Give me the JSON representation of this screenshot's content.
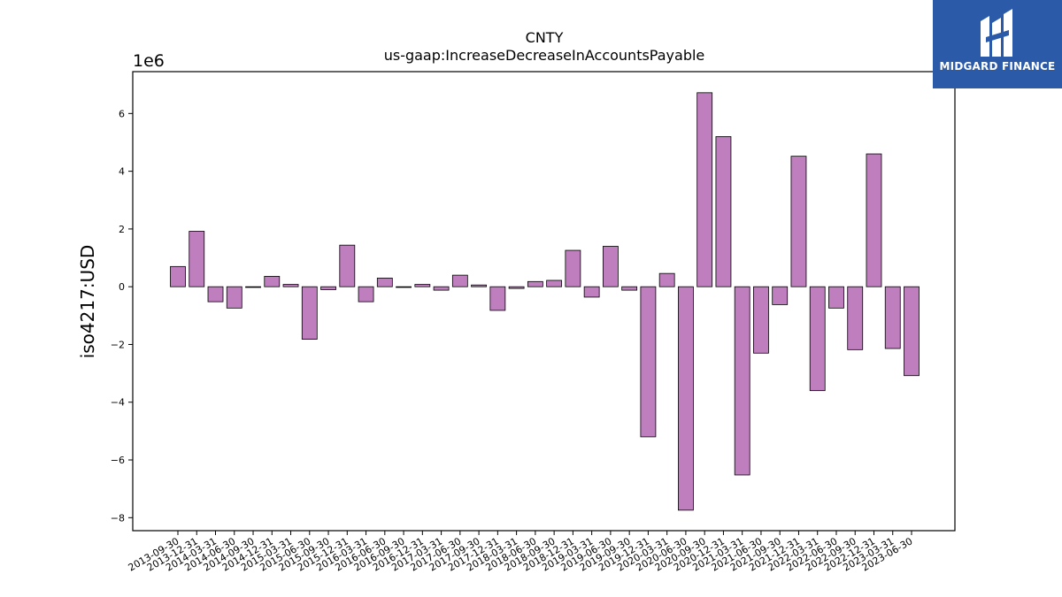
{
  "brand": {
    "name": "MIDGARD FINANCE",
    "background": "#2b5aa8"
  },
  "chart_data": {
    "type": "bar",
    "title": "CNTY",
    "subtitle": "us-gaap:IncreaseDecreaseInAccountsPayable",
    "ylabel": "iso4217:USD",
    "xlabel": "",
    "y_multiplier_label": "1e6",
    "ylim": [
      -8.45,
      7.45
    ],
    "yticks": [
      -8,
      -6,
      -4,
      -2,
      0,
      2,
      4,
      6
    ],
    "grid": false,
    "bar_color": "#bf7fbf",
    "categories": [
      "2013-09-30",
      "2013-12-31",
      "2014-03-31",
      "2014-06-30",
      "2014-09-30",
      "2014-12-31",
      "2015-03-31",
      "2015-06-30",
      "2015-09-30",
      "2015-12-31",
      "2016-03-31",
      "2016-06-30",
      "2016-09-30",
      "2016-12-31",
      "2017-03-31",
      "2017-06-30",
      "2017-09-30",
      "2017-12-31",
      "2018-03-31",
      "2018-06-30",
      "2018-09-30",
      "2018-12-31",
      "2019-03-31",
      "2019-06-30",
      "2019-09-30",
      "2019-12-31",
      "2020-03-31",
      "2020-06-30",
      "2020-09-30",
      "2020-12-31",
      "2021-03-31",
      "2021-06-30",
      "2021-09-30",
      "2021-12-31",
      "2022-03-31",
      "2022-06-30",
      "2022-09-30",
      "2022-12-31",
      "2023-03-31",
      "2023-06-30"
    ],
    "values": [
      0.7,
      1.92,
      -0.52,
      -0.74,
      -0.02,
      0.36,
      0.08,
      -1.82,
      -0.1,
      1.44,
      -0.52,
      0.3,
      -0.02,
      0.08,
      -0.12,
      0.4,
      0.06,
      -0.82,
      -0.06,
      0.18,
      0.22,
      1.26,
      -0.36,
      1.4,
      -0.12,
      -5.2,
      0.46,
      -7.74,
      6.72,
      5.2,
      -6.52,
      -2.3,
      -0.62,
      4.52,
      -3.6,
      -0.74,
      -2.18,
      4.6,
      -2.14,
      -3.08
    ]
  }
}
